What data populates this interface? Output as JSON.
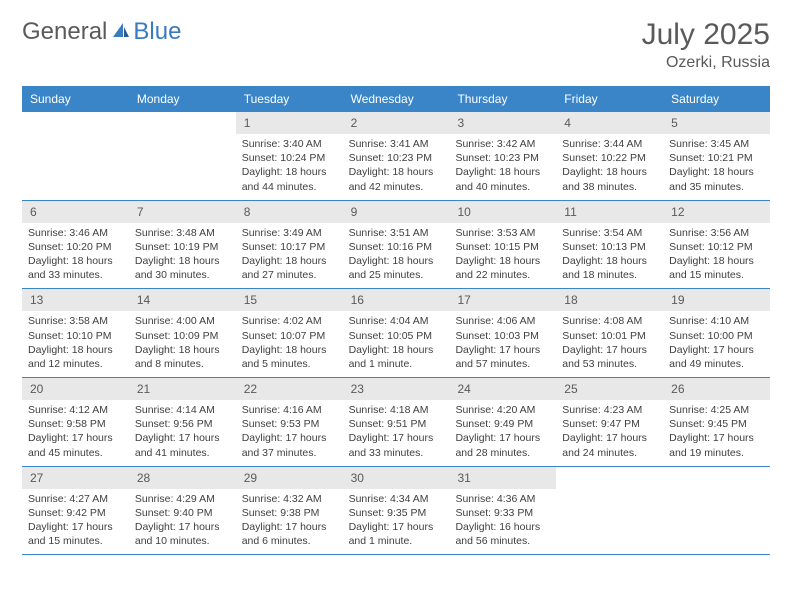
{
  "logo": {
    "textGeneral": "General",
    "textBlue": "Blue"
  },
  "title": "July 2025",
  "location": "Ozerki, Russia",
  "dayNames": [
    "Sunday",
    "Monday",
    "Tuesday",
    "Wednesday",
    "Thursday",
    "Friday",
    "Saturday"
  ],
  "colors": {
    "headerBg": "#3a85c7",
    "headerText": "#ffffff",
    "dayNumBg": "#e8e8e8",
    "textGray": "#5a5a5a",
    "bodyText": "#404040"
  },
  "weeks": [
    [
      null,
      null,
      {
        "num": "1",
        "sunrise": "3:40 AM",
        "sunset": "10:24 PM",
        "daylight": "18 hours and 44 minutes."
      },
      {
        "num": "2",
        "sunrise": "3:41 AM",
        "sunset": "10:23 PM",
        "daylight": "18 hours and 42 minutes."
      },
      {
        "num": "3",
        "sunrise": "3:42 AM",
        "sunset": "10:23 PM",
        "daylight": "18 hours and 40 minutes."
      },
      {
        "num": "4",
        "sunrise": "3:44 AM",
        "sunset": "10:22 PM",
        "daylight": "18 hours and 38 minutes."
      },
      {
        "num": "5",
        "sunrise": "3:45 AM",
        "sunset": "10:21 PM",
        "daylight": "18 hours and 35 minutes."
      }
    ],
    [
      {
        "num": "6",
        "sunrise": "3:46 AM",
        "sunset": "10:20 PM",
        "daylight": "18 hours and 33 minutes."
      },
      {
        "num": "7",
        "sunrise": "3:48 AM",
        "sunset": "10:19 PM",
        "daylight": "18 hours and 30 minutes."
      },
      {
        "num": "8",
        "sunrise": "3:49 AM",
        "sunset": "10:17 PM",
        "daylight": "18 hours and 27 minutes."
      },
      {
        "num": "9",
        "sunrise": "3:51 AM",
        "sunset": "10:16 PM",
        "daylight": "18 hours and 25 minutes."
      },
      {
        "num": "10",
        "sunrise": "3:53 AM",
        "sunset": "10:15 PM",
        "daylight": "18 hours and 22 minutes."
      },
      {
        "num": "11",
        "sunrise": "3:54 AM",
        "sunset": "10:13 PM",
        "daylight": "18 hours and 18 minutes."
      },
      {
        "num": "12",
        "sunrise": "3:56 AM",
        "sunset": "10:12 PM",
        "daylight": "18 hours and 15 minutes."
      }
    ],
    [
      {
        "num": "13",
        "sunrise": "3:58 AM",
        "sunset": "10:10 PM",
        "daylight": "18 hours and 12 minutes."
      },
      {
        "num": "14",
        "sunrise": "4:00 AM",
        "sunset": "10:09 PM",
        "daylight": "18 hours and 8 minutes."
      },
      {
        "num": "15",
        "sunrise": "4:02 AM",
        "sunset": "10:07 PM",
        "daylight": "18 hours and 5 minutes."
      },
      {
        "num": "16",
        "sunrise": "4:04 AM",
        "sunset": "10:05 PM",
        "daylight": "18 hours and 1 minute."
      },
      {
        "num": "17",
        "sunrise": "4:06 AM",
        "sunset": "10:03 PM",
        "daylight": "17 hours and 57 minutes."
      },
      {
        "num": "18",
        "sunrise": "4:08 AM",
        "sunset": "10:01 PM",
        "daylight": "17 hours and 53 minutes."
      },
      {
        "num": "19",
        "sunrise": "4:10 AM",
        "sunset": "10:00 PM",
        "daylight": "17 hours and 49 minutes."
      }
    ],
    [
      {
        "num": "20",
        "sunrise": "4:12 AM",
        "sunset": "9:58 PM",
        "daylight": "17 hours and 45 minutes."
      },
      {
        "num": "21",
        "sunrise": "4:14 AM",
        "sunset": "9:56 PM",
        "daylight": "17 hours and 41 minutes."
      },
      {
        "num": "22",
        "sunrise": "4:16 AM",
        "sunset": "9:53 PM",
        "daylight": "17 hours and 37 minutes."
      },
      {
        "num": "23",
        "sunrise": "4:18 AM",
        "sunset": "9:51 PM",
        "daylight": "17 hours and 33 minutes."
      },
      {
        "num": "24",
        "sunrise": "4:20 AM",
        "sunset": "9:49 PM",
        "daylight": "17 hours and 28 minutes."
      },
      {
        "num": "25",
        "sunrise": "4:23 AM",
        "sunset": "9:47 PM",
        "daylight": "17 hours and 24 minutes."
      },
      {
        "num": "26",
        "sunrise": "4:25 AM",
        "sunset": "9:45 PM",
        "daylight": "17 hours and 19 minutes."
      }
    ],
    [
      {
        "num": "27",
        "sunrise": "4:27 AM",
        "sunset": "9:42 PM",
        "daylight": "17 hours and 15 minutes."
      },
      {
        "num": "28",
        "sunrise": "4:29 AM",
        "sunset": "9:40 PM",
        "daylight": "17 hours and 10 minutes."
      },
      {
        "num": "29",
        "sunrise": "4:32 AM",
        "sunset": "9:38 PM",
        "daylight": "17 hours and 6 minutes."
      },
      {
        "num": "30",
        "sunrise": "4:34 AM",
        "sunset": "9:35 PM",
        "daylight": "17 hours and 1 minute."
      },
      {
        "num": "31",
        "sunrise": "4:36 AM",
        "sunset": "9:33 PM",
        "daylight": "16 hours and 56 minutes."
      },
      null,
      null
    ]
  ]
}
